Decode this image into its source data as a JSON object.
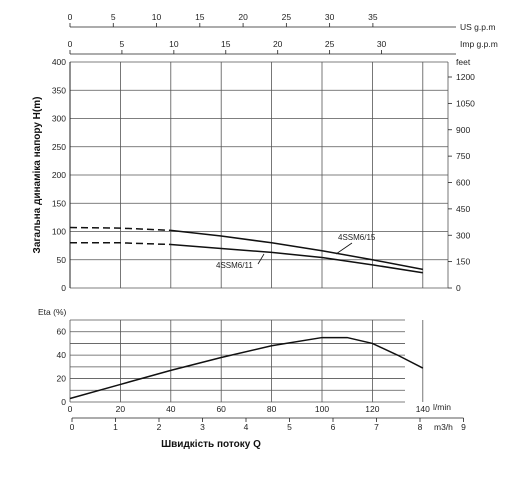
{
  "chart_data": [
    {
      "type": "line",
      "ylabel": "Загальна динаміка напору H(m)",
      "ylim": [
        0,
        400
      ],
      "y_ticks": [
        "0",
        "50",
        "100",
        "150",
        "200",
        "250",
        "300",
        "350",
        "400"
      ],
      "right_axis": {
        "unit": "feet",
        "ticks": [
          "0",
          "150",
          "300",
          "450",
          "600",
          "750",
          "900",
          "1050",
          "1200"
        ]
      },
      "top_axes": [
        {
          "unit": "US g.p.m",
          "range": [
            0,
            38
          ],
          "ticks": [
            "0",
            "5",
            "10",
            "15",
            "20",
            "25",
            "30",
            "35"
          ]
        },
        {
          "unit": "Imp g.p.m",
          "range": [
            0,
            38
          ],
          "ticks": [
            "0",
            "5",
            "10",
            "15",
            "20",
            "25",
            "30"
          ]
        }
      ],
      "x_range": [
        0,
        150
      ],
      "grid": true,
      "series": [
        {
          "name": "4SSM6/15",
          "x": [
            0,
            20,
            40,
            60,
            80,
            100,
            120,
            140
          ],
          "y": [
            107,
            106,
            102,
            92,
            80,
            66,
            50,
            33
          ]
        },
        {
          "name": "4SSM6/11",
          "x": [
            0,
            20,
            40,
            60,
            80,
            100,
            120,
            140
          ],
          "y": [
            80,
            80,
            77,
            70,
            63,
            54,
            41,
            27
          ]
        }
      ]
    },
    {
      "type": "line",
      "ylabel": "Eta (%)",
      "ylim": [
        0,
        70
      ],
      "y_ticks": [
        "0",
        "20",
        "40",
        "60"
      ],
      "x_axes": [
        {
          "unit": "l/min",
          "range": [
            0,
            150
          ],
          "ticks": [
            "0",
            "20",
            "40",
            "60",
            "80",
            "100",
            "120",
            "140"
          ]
        },
        {
          "unit": "m3/h",
          "range": [
            0,
            9
          ],
          "ticks": [
            "0",
            "1",
            "2",
            "3",
            "4",
            "5",
            "6",
            "7",
            "8",
            "9"
          ]
        }
      ],
      "xlabel": "Швидкість потоку Q",
      "grid": true,
      "series": [
        {
          "x": [
            0,
            20,
            40,
            60,
            80,
            100,
            110,
            120,
            130,
            140
          ],
          "y": [
            3,
            15,
            27,
            38,
            48,
            55,
            55,
            50,
            40,
            29
          ]
        }
      ]
    }
  ]
}
